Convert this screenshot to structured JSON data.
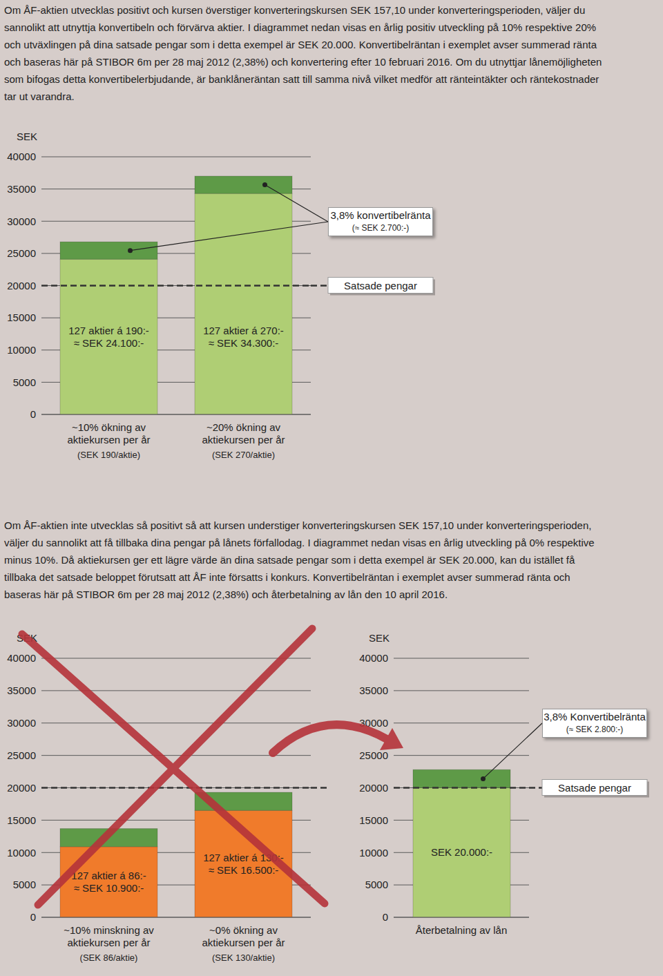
{
  "paragraphs": [
    "Om ÅF-aktien utvecklas positivt och kursen överstiger konverteringskursen SEK 157,10 under konverteringsperioden, väljer du sannolikt att utnyttja konvertibeln och förvärva aktier. I diagrammet nedan visas en årlig positiv utveckling på 10% respektive 20% och utväxlingen på dina satsade pengar som i detta exempel är SEK 20.000. Konvertibelräntan i exemplet avser summerad ränta och baseras här på STIBOR 6m per 28 maj 2012 (2,38%) och konvertering efter 10 februari 2016. Om du utnyttjar lånemöjligheten som bifogas detta konvertibelerbjudande, är banklåneräntan satt till samma nivå vilket medför att ränteintäkter och räntekostnader tar ut varandra.",
    "Om ÅF-aktien inte utvecklas så positivt så att kursen understiger konverteringskursen SEK 157,10 under konverteringsperioden, väljer du sannolikt att få tillbaka dina pengar på lånets förfallodag. I diagrammet nedan visas en årlig utveckling på 0% respektive minus 10%. Då aktiekursen ger ett lägre värde än dina satsade pengar som i detta exempel är SEK 20.000, kan du istället få tillbaka det satsade beloppet förutsatt att ÅF inte försatts i konkurs. Konvertibelräntan i exemplet avser summerad ränta och baseras här på STIBOR 6m per 28 maj 2012 (2,38%) och återbetalning av lån den 10 april 2016."
  ],
  "chart_data": [
    {
      "type": "bar",
      "stacked": true,
      "grid": true,
      "y_label": "SEK",
      "categories": [
        "~10% ökning av aktiekursen per år",
        "~20% ökning av aktiekursen per år"
      ],
      "category_notes": [
        "(SEK 190/aktie)",
        "(SEK 270/aktie)"
      ],
      "series": [
        {
          "color": "#afce74",
          "values": [
            24100,
            34300
          ],
          "data_labels": true,
          "value_labels": [
            "127 aktier á 190:- ≈ SEK 24.100:-",
            "127 aktier á 270:- ≈ SEK 34.300:-"
          ]
        },
        {
          "color": "#5e9a47",
          "values": [
            2700,
            2700
          ]
        }
      ],
      "ylim": [
        0,
        40000
      ],
      "yticks": [
        0,
        5000,
        10000,
        15000,
        20000,
        25000,
        30000,
        35000,
        40000
      ],
      "reference_line": {
        "value": 20000,
        "label": "Satsade pengar",
        "line_style": "dashed"
      },
      "annotation": {
        "text": "3,8% konvertibelränta",
        "subtext": "(≈ SEK 2.700:-)"
      }
    },
    {
      "type": "bar",
      "stacked": true,
      "grid": true,
      "y_label": "SEK",
      "categories": [
        "~10% minskning av aktiekursen per år",
        "~0% ökning av aktiekursen per år"
      ],
      "category_notes": [
        "(SEK 86/aktie)",
        "(SEK 130/aktie)"
      ],
      "series": [
        {
          "color": "#f07b2b",
          "values": [
            10900,
            16500
          ],
          "data_labels": true,
          "value_labels": [
            "127 aktier á 86:- ≈ SEK 10.900:-",
            "127 aktier á 130:- ≈ SEK 16.500:-"
          ]
        },
        {
          "color": "#5e9a47",
          "values": [
            2800,
            2800
          ]
        }
      ],
      "ylim": [
        0,
        40000
      ],
      "yticks": [
        0,
        5000,
        10000,
        15000,
        20000,
        25000,
        30000,
        35000,
        40000
      ],
      "reference_line": {
        "value": 20000,
        "line_style": "dashed"
      }
    },
    {
      "type": "bar",
      "stacked": true,
      "grid": true,
      "y_label": "SEK",
      "categories": [
        "Återbetalning av lån"
      ],
      "series": [
        {
          "color": "#afce74",
          "values": [
            20000
          ],
          "data_labels": true,
          "value_labels": [
            "SEK 20.000:-"
          ]
        },
        {
          "color": "#5e9a47",
          "values": [
            2800
          ]
        }
      ],
      "ylim": [
        0,
        40000
      ],
      "yticks": [
        0,
        5000,
        10000,
        15000,
        20000,
        25000,
        30000,
        35000,
        40000
      ],
      "reference_line": {
        "value": 20000,
        "label": "Satsade pengar",
        "line_style": "dashed"
      },
      "annotation": {
        "text": "3,8% Konvertibelränta",
        "subtext": "(≈ SEK 2.800:-)"
      }
    }
  ]
}
